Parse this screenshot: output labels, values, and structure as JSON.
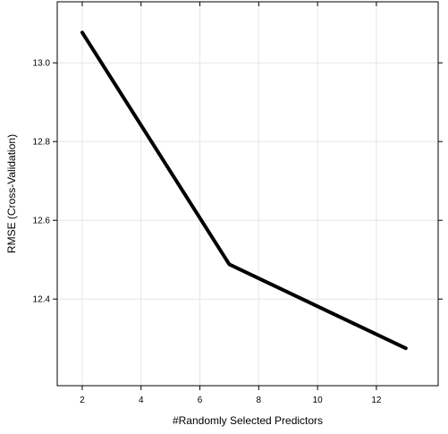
{
  "chart_data": {
    "type": "line",
    "title": "",
    "xlabel": "#Randomly Selected Predictors",
    "ylabel": "RMSE (Cross-Validation)",
    "x": [
      2,
      7,
      13
    ],
    "series": [
      {
        "values": [
          13.077,
          12.488,
          12.275
        ]
      }
    ],
    "xlim": [
      1.15,
      14.1
    ],
    "ylim": [
      12.18,
      13.155
    ],
    "xticks": [
      2,
      4,
      6,
      8,
      10,
      12
    ],
    "yticks": [
      12.4,
      12.6,
      12.8,
      13.0
    ],
    "xtick_labels": [
      "2",
      "4",
      "6",
      "8",
      "10",
      "12"
    ],
    "ytick_labels": [
      "12.4",
      "12.6",
      "12.8",
      "13.0"
    ],
    "grid": true,
    "line_color": "#000000",
    "grid_color": "#e6e6e6"
  }
}
